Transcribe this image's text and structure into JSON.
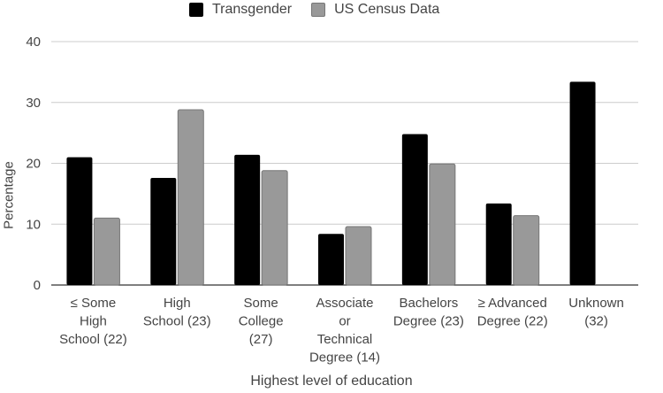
{
  "chart_data": {
    "type": "bar",
    "title": "",
    "xlabel": "Highest level of education",
    "ylabel": "Percentage",
    "ylim": [
      0,
      40
    ],
    "yticks": [
      0,
      10,
      20,
      30,
      40
    ],
    "grid": true,
    "legend_position": "top-center",
    "categories": [
      "≤ Some High School (22)",
      "High School (23)",
      "Some College (27)",
      "Associate or Technical Degree (14)",
      "Bachelors Degree (23)",
      "≥ Advanced Degree (22)",
      "Unknown (32)"
    ],
    "category_lines": [
      [
        "≤ Some",
        "High",
        "School (22)"
      ],
      [
        "High",
        "School (23)"
      ],
      [
        "Some",
        "College",
        "(27)"
      ],
      [
        "Associate",
        "or",
        "Technical",
        "Degree (14)"
      ],
      [
        "Bachelors",
        "Degree (23)"
      ],
      [
        "≥ Advanced",
        "Degree (22)"
      ],
      [
        "Unknown",
        "(32)"
      ]
    ],
    "series": [
      {
        "name": "Transgender",
        "color": "#000000",
        "values": [
          21.0,
          17.6,
          21.4,
          8.4,
          24.8,
          13.4,
          33.4
        ]
      },
      {
        "name": "US Census Data",
        "color": "#999999",
        "values": [
          11.0,
          28.8,
          18.8,
          9.6,
          19.9,
          11.4,
          null
        ]
      }
    ]
  }
}
